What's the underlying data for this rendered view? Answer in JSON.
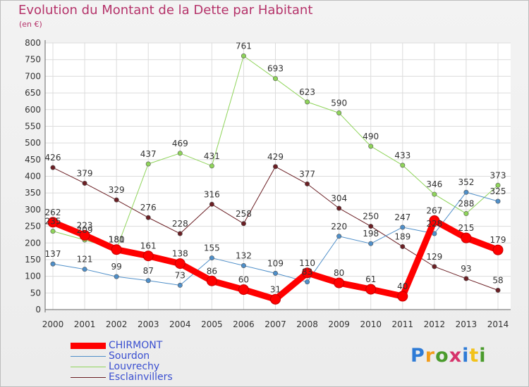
{
  "title": "Evolution du Montant de la Dette par Habitant",
  "subtitle": "(en €)",
  "logo": {
    "text": "Proxiti",
    "letters": [
      "P",
      "r",
      "o",
      "x",
      "i",
      "t",
      "i"
    ],
    "colors": [
      "#2e7bd6",
      "#f29d1b",
      "#4a9b2c",
      "#d6336b",
      "#2e7bd6",
      "#f2c21b",
      "#4a9b2c"
    ]
  },
  "chart_data": {
    "type": "line",
    "title": "Evolution du Montant de la Dette par Habitant",
    "subtitle": "(en €)",
    "xlabel": "",
    "ylabel": "",
    "categories": [
      "2000",
      "2001",
      "2002",
      "2003",
      "2004",
      "2005",
      "2006",
      "2007",
      "2008",
      "2009",
      "2010",
      "2011",
      "2012",
      "2013",
      "2014"
    ],
    "ylim": [
      0,
      800
    ],
    "yticks": [
      0,
      50,
      100,
      150,
      200,
      250,
      300,
      350,
      400,
      450,
      500,
      550,
      600,
      650,
      700,
      750,
      800
    ],
    "grid": true,
    "legend_position": "bottom-left",
    "series": [
      {
        "name": "Esclainvillers",
        "color": "#6b1f24",
        "width": 1,
        "values": [
          426,
          379,
          329,
          276,
          228,
          316,
          258,
          429,
          377,
          304,
          250,
          189,
          129,
          93,
          58
        ],
        "labels": [
          "426",
          "379",
          "329",
          "276",
          "228",
          "316",
          "258",
          "429",
          "377",
          "304",
          "250",
          "189",
          "129",
          "93",
          "58"
        ]
      },
      {
        "name": "Louvrechy",
        "color": "#8fd45a",
        "width": 1,
        "values": [
          235,
          209,
          181,
          437,
          469,
          431,
          761,
          693,
          623,
          590,
          490,
          433,
          346,
          288,
          373
        ],
        "labels": [
          "235",
          "209",
          "181",
          "437",
          "469",
          "431",
          "761",
          "693",
          "623",
          "590",
          "490",
          "433",
          "346",
          "288",
          "373"
        ]
      },
      {
        "name": "Sourdon",
        "color": "#4f8fc9",
        "width": 1,
        "values": [
          137,
          121,
          99,
          87,
          73,
          155,
          132,
          109,
          83,
          220,
          198,
          247,
          228,
          352,
          325
        ],
        "labels": [
          "137",
          "121",
          "99",
          "87",
          "73",
          "155",
          "132",
          "109",
          "83",
          "220",
          "198",
          "247",
          "228",
          "352",
          "325"
        ]
      },
      {
        "name": "CHIRMONT",
        "color": "#ff0000",
        "width": 9,
        "values": [
          262,
          223,
          180,
          161,
          138,
          86,
          60,
          31,
          110,
          80,
          61,
          40,
          267,
          215,
          179
        ],
        "labels": [
          "262",
          "223",
          "180",
          "161",
          "138",
          "86",
          "60",
          "31",
          "110",
          "80",
          "61",
          "40",
          "267",
          "215",
          "179"
        ]
      }
    ],
    "legend": [
      "CHIRMONT",
      "Sourdon",
      "Louvrechy",
      "Esclainvillers"
    ]
  }
}
